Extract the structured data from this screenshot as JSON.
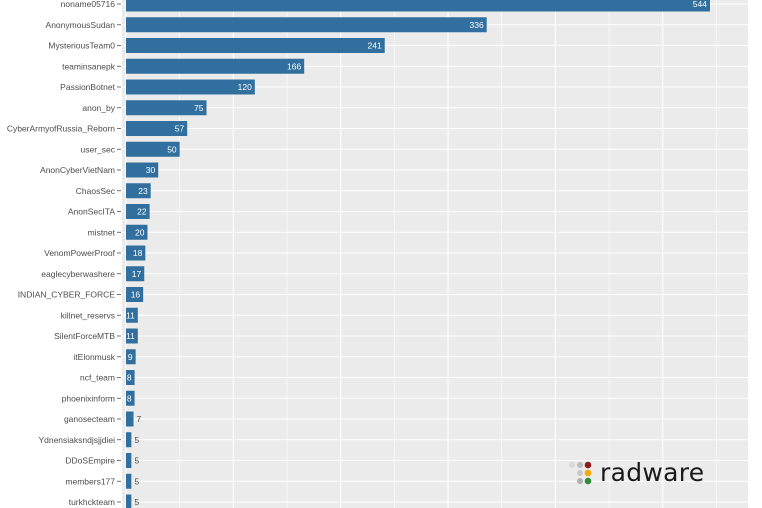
{
  "chart_data": {
    "type": "bar",
    "orientation": "horizontal",
    "title": "",
    "xlabel": "",
    "ylabel": "",
    "grid": true,
    "bar_color": "#31709e",
    "categories": [
      "noname05716",
      "AnonymousSudan",
      "MysteriousTeam0",
      "teaminsanepk",
      "PassionBotnet",
      "anon_by",
      "CyberArmyofRussia_Reborn",
      "user_sec",
      "AnonCyberVietNam",
      "ChaosSec",
      "AnonSecITA",
      "mistnet",
      "VenomPowerProof",
      "eaglecyberwashere",
      "INDIAN_CYBER_FORCE",
      "killnet_reservs",
      "SilentForceMTB",
      "itElonmusk",
      "ncf_team",
      "phoenixinform",
      "ganosecteam",
      "Ydnensiaksndjsjjdiei",
      "DDoSEmpire",
      "members177",
      "turkhckteam"
    ],
    "values": [
      544,
      336,
      241,
      166,
      120,
      75,
      57,
      50,
      30,
      23,
      22,
      20,
      18,
      17,
      16,
      11,
      11,
      9,
      8,
      8,
      7,
      5,
      5,
      5,
      5
    ],
    "value_labels": [
      "544",
      "336",
      "241",
      "166",
      "120",
      "75",
      "57",
      "50",
      "30",
      "23",
      "22",
      "20",
      "18",
      "17",
      "16",
      "11",
      "11",
      "9",
      "8",
      "8",
      "7",
      "5",
      "5",
      "5",
      "5"
    ],
    "xlim": [
      0,
      580
    ]
  },
  "logo": {
    "text": "radware",
    "dot_colors": [
      "#d9d9d9",
      "#bdbdbd",
      "#8c1d1d",
      "#c8c8c8",
      "#f2a900",
      "#b0b0b0",
      "#2e8b3a"
    ]
  }
}
